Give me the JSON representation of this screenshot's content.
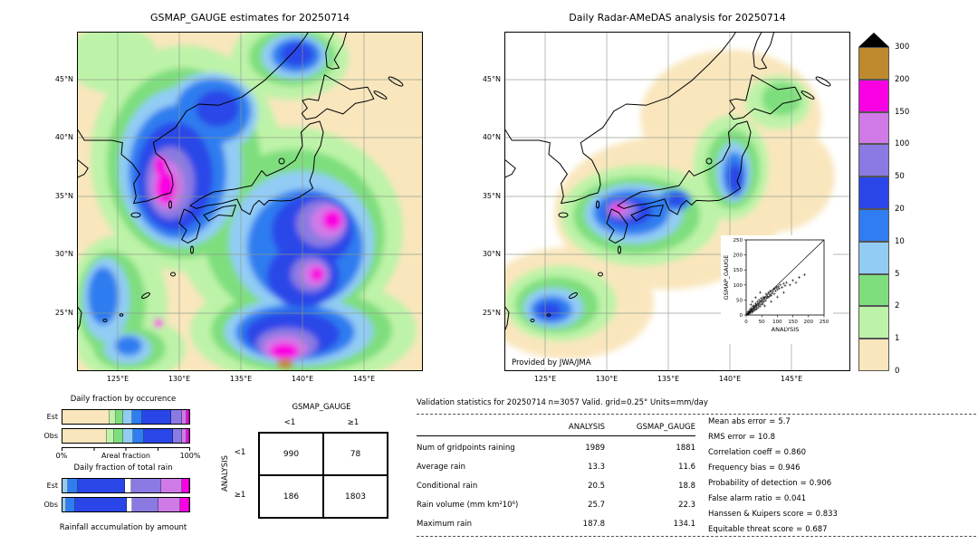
{
  "left_map": {
    "title": "GSMAP_GAUGE estimates for 20250714",
    "lat_ticks": [
      "45°N",
      "40°N",
      "35°N",
      "30°N",
      "25°N"
    ],
    "lon_ticks": [
      "125°E",
      "130°E",
      "135°E",
      "140°E",
      "145°E"
    ]
  },
  "right_map": {
    "title": "Daily Radar-AMeDAS analysis for 20250714",
    "lat_ticks": [
      "45°N",
      "40°N",
      "35°N",
      "30°N",
      "25°N"
    ],
    "lon_ticks": [
      "125°E",
      "130°E",
      "135°E",
      "140°E",
      "145°E"
    ],
    "credit": "Provided by JWA/JMA"
  },
  "colorbar": {
    "labels": [
      "300",
      "200",
      "150",
      "100",
      "50",
      "20",
      "10",
      "5",
      "2",
      "1",
      "0"
    ],
    "colors": [
      "#bf8a2e",
      "#f900e2",
      "#d07ae8",
      "#8a7ae2",
      "#2a46e8",
      "#2f7df0",
      "#92ccf5",
      "#7ede7e",
      "#bdf3a8",
      "#f9e6bd"
    ],
    "over_color": "#000000",
    "units": "mm/day"
  },
  "inset": {
    "xlabel": "ANALYSIS",
    "ylabel": "GSMAP_GAUGE",
    "x_ticks": [
      "0",
      "50",
      "100",
      "150",
      "200",
      "250"
    ],
    "y_ticks": [
      "0",
      "50",
      "100",
      "150",
      "200",
      "250"
    ],
    "points": [
      [
        3,
        5
      ],
      [
        5,
        2
      ],
      [
        6,
        10
      ],
      [
        8,
        4
      ],
      [
        9,
        12
      ],
      [
        10,
        8
      ],
      [
        12,
        6
      ],
      [
        12,
        18
      ],
      [
        14,
        10
      ],
      [
        15,
        15
      ],
      [
        16,
        22
      ],
      [
        18,
        9
      ],
      [
        19,
        14
      ],
      [
        20,
        20
      ],
      [
        21,
        28
      ],
      [
        22,
        12
      ],
      [
        24,
        18
      ],
      [
        25,
        25
      ],
      [
        26,
        32
      ],
      [
        28,
        16
      ],
      [
        29,
        22
      ],
      [
        30,
        30
      ],
      [
        31,
        38
      ],
      [
        33,
        20
      ],
      [
        34,
        27
      ],
      [
        35,
        35
      ],
      [
        36,
        44
      ],
      [
        38,
        24
      ],
      [
        40,
        32
      ],
      [
        41,
        50
      ],
      [
        42,
        38
      ],
      [
        44,
        28
      ],
      [
        45,
        45
      ],
      [
        47,
        35
      ],
      [
        48,
        55
      ],
      [
        50,
        42
      ],
      [
        52,
        48
      ],
      [
        54,
        36
      ],
      [
        55,
        60
      ],
      [
        57,
        45
      ],
      [
        58,
        52
      ],
      [
        60,
        58
      ],
      [
        62,
        48
      ],
      [
        64,
        70
      ],
      [
        65,
        55
      ],
      [
        68,
        62
      ],
      [
        70,
        58
      ],
      [
        72,
        75
      ],
      [
        74,
        62
      ],
      [
        76,
        68
      ],
      [
        78,
        80
      ],
      [
        80,
        65
      ],
      [
        82,
        72
      ],
      [
        85,
        78
      ],
      [
        88,
        85
      ],
      [
        90,
        70
      ],
      [
        92,
        88
      ],
      [
        95,
        80
      ],
      [
        98,
        92
      ],
      [
        100,
        85
      ],
      [
        103,
        95
      ],
      [
        106,
        88
      ],
      [
        110,
        100
      ],
      [
        115,
        92
      ],
      [
        120,
        105
      ],
      [
        125,
        98
      ],
      [
        130,
        108
      ],
      [
        140,
        100
      ],
      [
        150,
        115
      ],
      [
        160,
        108
      ],
      [
        170,
        125
      ],
      [
        187,
        134
      ],
      [
        20,
        45
      ],
      [
        30,
        58
      ],
      [
        45,
        75
      ],
      [
        15,
        35
      ],
      [
        60,
        30
      ],
      [
        80,
        45
      ],
      [
        100,
        60
      ],
      [
        120,
        75
      ]
    ]
  },
  "fractions": {
    "occurrence_title": "Daily fraction by occurence",
    "totalrain_title": "Daily fraction of total rain",
    "axis_left": "0%",
    "axis_label": "Areal fraction",
    "axis_right": "100%",
    "row_labels": [
      "Est",
      "Obs"
    ],
    "caption": "Rainfall accumulation by amount",
    "occurrence": {
      "est": [
        {
          "color": "#f9e6bd",
          "pct": 37
        },
        {
          "color": "#bdf3a8",
          "pct": 5
        },
        {
          "color": "#7ede7e",
          "pct": 6
        },
        {
          "color": "#92ccf5",
          "pct": 7
        },
        {
          "color": "#2f7df0",
          "pct": 8
        },
        {
          "color": "#2a46e8",
          "pct": 23
        },
        {
          "color": "#8a7ae2",
          "pct": 8
        },
        {
          "color": "#d07ae8",
          "pct": 4
        },
        {
          "color": "#f900e2",
          "pct": 2
        }
      ],
      "obs": [
        {
          "color": "#f9e6bd",
          "pct": 35
        },
        {
          "color": "#bdf3a8",
          "pct": 6
        },
        {
          "color": "#7ede7e",
          "pct": 7
        },
        {
          "color": "#92ccf5",
          "pct": 8
        },
        {
          "color": "#2f7df0",
          "pct": 8
        },
        {
          "color": "#2a46e8",
          "pct": 23
        },
        {
          "color": "#8a7ae2",
          "pct": 7
        },
        {
          "color": "#d07ae8",
          "pct": 4
        },
        {
          "color": "#f900e2",
          "pct": 2
        }
      ]
    },
    "total_rain": {
      "est": [
        {
          "color": "#92ccf5",
          "pct": 4
        },
        {
          "color": "#2f7df0",
          "pct": 8
        },
        {
          "color": "#2a46e8",
          "pct": 37
        },
        {
          "color": "#ffffff",
          "pct": 5
        },
        {
          "color": "#8a7ae2",
          "pct": 24
        },
        {
          "color": "#d07ae8",
          "pct": 16
        },
        {
          "color": "#f900e2",
          "pct": 6
        }
      ],
      "obs": [
        {
          "color": "#92ccf5",
          "pct": 3
        },
        {
          "color": "#2f7df0",
          "pct": 7
        },
        {
          "color": "#2a46e8",
          "pct": 41
        },
        {
          "color": "#ffffff",
          "pct": 4
        },
        {
          "color": "#8a7ae2",
          "pct": 21
        },
        {
          "color": "#d07ae8",
          "pct": 17
        },
        {
          "color": "#f900e2",
          "pct": 7
        }
      ]
    }
  },
  "contingency": {
    "col_header": "GSMAP_GAUGE",
    "row_header": "ANALYSIS",
    "col_labels": [
      "<1",
      "≥1"
    ],
    "row_labels": [
      "<1",
      "≥1"
    ],
    "cells": [
      [
        "990",
        "78"
      ],
      [
        "186",
        "1803"
      ]
    ]
  },
  "stats": {
    "title": "Validation statistics for 20250714  n=3057 Valid. grid=0.25° Units=mm/day",
    "col_headers": [
      "ANALYSIS",
      "GSMAP_GAUGE"
    ],
    "eq": "=",
    "rows": [
      {
        "label": "Num of gridpoints raining",
        "analysis": "1989",
        "gsmap": "1881"
      },
      {
        "label": "Average rain",
        "analysis": "13.3",
        "gsmap": "11.6"
      },
      {
        "label": "Conditional rain",
        "analysis": "20.5",
        "gsmap": "18.8"
      },
      {
        "label": "Rain volume (mm km²10⁶)",
        "analysis": "25.7",
        "gsmap": "22.3"
      },
      {
        "label": "Maximum rain",
        "analysis": "187.8",
        "gsmap": "134.1"
      }
    ],
    "extra": [
      {
        "label": "Mean abs error",
        "value": "5.7"
      },
      {
        "label": "RMS error",
        "value": "10.8"
      },
      {
        "label": "Correlation coeff",
        "value": "0.860"
      },
      {
        "label": "Frequency bias",
        "value": "0.946"
      },
      {
        "label": "Probability of detection",
        "value": "0.906"
      },
      {
        "label": "False alarm ratio",
        "value": "0.041"
      },
      {
        "label": "Hanssen & Kuipers score",
        "value": "0.833"
      },
      {
        "label": "Equitable threat score",
        "value": "0.687"
      }
    ]
  },
  "chart_data": [
    {
      "type": "heatmap",
      "title": "GSMAP_GAUGE estimates for 20250714",
      "units": "mm/day",
      "color_levels": [
        0,
        1,
        2,
        5,
        10,
        20,
        50,
        100,
        150,
        200,
        300
      ],
      "lon_range": [
        122,
        149
      ],
      "lat_range": [
        21,
        49
      ],
      "description": "Daily satellite-gauge rainfall estimates over the Japan region; heavy cores (>150 mm/day) near Korea/Sea of Japan, southeast of Honshu, and far south with a >200 mm/day spot"
    },
    {
      "type": "heatmap",
      "title": "Daily Radar-AMeDAS analysis for 20250714",
      "units": "mm/day",
      "color_levels": [
        0,
        1,
        2,
        5,
        10,
        20,
        50,
        100,
        150,
        200,
        300
      ],
      "lon_range": [
        122,
        149
      ],
      "lat_range": [
        21,
        49
      ],
      "description": "Radar-AMeDAS daily rainfall analysis limited to radar coverage along the Japanese archipelago; >100 mm/day cores over western Honshu"
    },
    {
      "type": "scatter",
      "xlabel": "ANALYSIS",
      "ylabel": "GSMAP_GAUGE",
      "xlim": [
        0,
        250
      ],
      "ylim": [
        0,
        250
      ],
      "note": "gridpoint comparison, dense cluster below 100 mm/day along 1:1 line; points listed in inset.points"
    },
    {
      "type": "table",
      "title": "Contingency table at 1 mm/day threshold (rows=ANALYSIS, cols=GSMAP_GAUGE)",
      "columns": [
        "<1",
        ">=1"
      ],
      "rows": [
        [
          990,
          78
        ],
        [
          186,
          1803
        ]
      ]
    },
    {
      "type": "table",
      "title": "Validation statistics",
      "n": 3057,
      "grid": "0.25 deg",
      "units": "mm/day",
      "columns": [
        "metric",
        "ANALYSIS",
        "GSMAP_GAUGE"
      ],
      "rows": [
        [
          "Num of gridpoints raining",
          1989,
          1881
        ],
        [
          "Average rain",
          13.3,
          11.6
        ],
        [
          "Conditional rain",
          20.5,
          18.8
        ],
        [
          "Rain volume (mm km2 10^6)",
          25.7,
          22.3
        ],
        [
          "Maximum rain",
          187.8,
          134.1
        ]
      ],
      "scores": {
        "mean_abs_error": 5.7,
        "rms_error": 10.8,
        "correlation_coeff": 0.86,
        "frequency_bias": 0.946,
        "probability_of_detection": 0.906,
        "false_alarm_ratio": 0.041,
        "hanssen_kuipers_score": 0.833,
        "equitable_threat_score": 0.687
      }
    }
  ]
}
